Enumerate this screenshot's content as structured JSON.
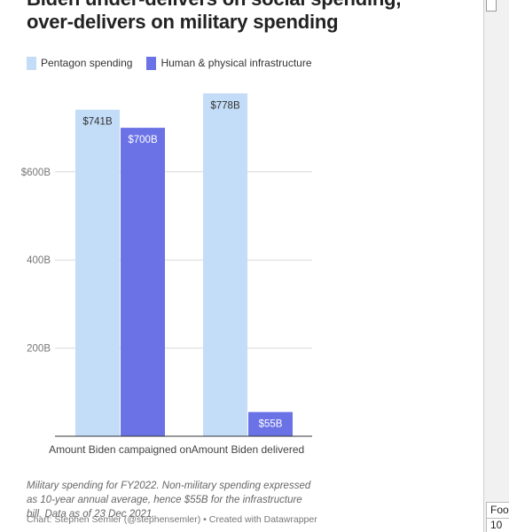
{
  "chart_data": {
    "type": "bar",
    "title": "Biden under-delivers on social spending, over-delivers on military spending",
    "title_lines": [
      "Biden under-delivers on social spending,",
      "over-delivers on military spending"
    ],
    "categories": [
      "Amount Biden campaigned on",
      "Amount Biden delivered"
    ],
    "series": [
      {
        "name": "Pentagon spending",
        "color": "#c3dcf7",
        "values": [
          741,
          778
        ],
        "labels": [
          "$741B",
          "$778B"
        ]
      },
      {
        "name": "Human & physical infrastructure",
        "color": "#6b72e6",
        "values": [
          700,
          55
        ],
        "labels": [
          "$700B",
          "$55B"
        ]
      }
    ],
    "y_ticks": [
      {
        "value": 200,
        "label": "200B"
      },
      {
        "value": 400,
        "label": "400B"
      },
      {
        "value": 600,
        "label": "$600B"
      }
    ],
    "ylim": [
      0,
      800
    ],
    "grid": true,
    "legend_position": "top-left",
    "xlabel": "",
    "ylabel": ""
  },
  "footnote": "Military spending for FY2022. Non-military spending expressed as 10-year annual average, hence $55B for the infrastructure bill. Data as of 23 Dec 2021.",
  "credit": "Chart: Stephen Semler (@stephensemler) • Created with Datawrapper",
  "sidebar": {
    "field_label": "Foo",
    "field_value": "10"
  }
}
